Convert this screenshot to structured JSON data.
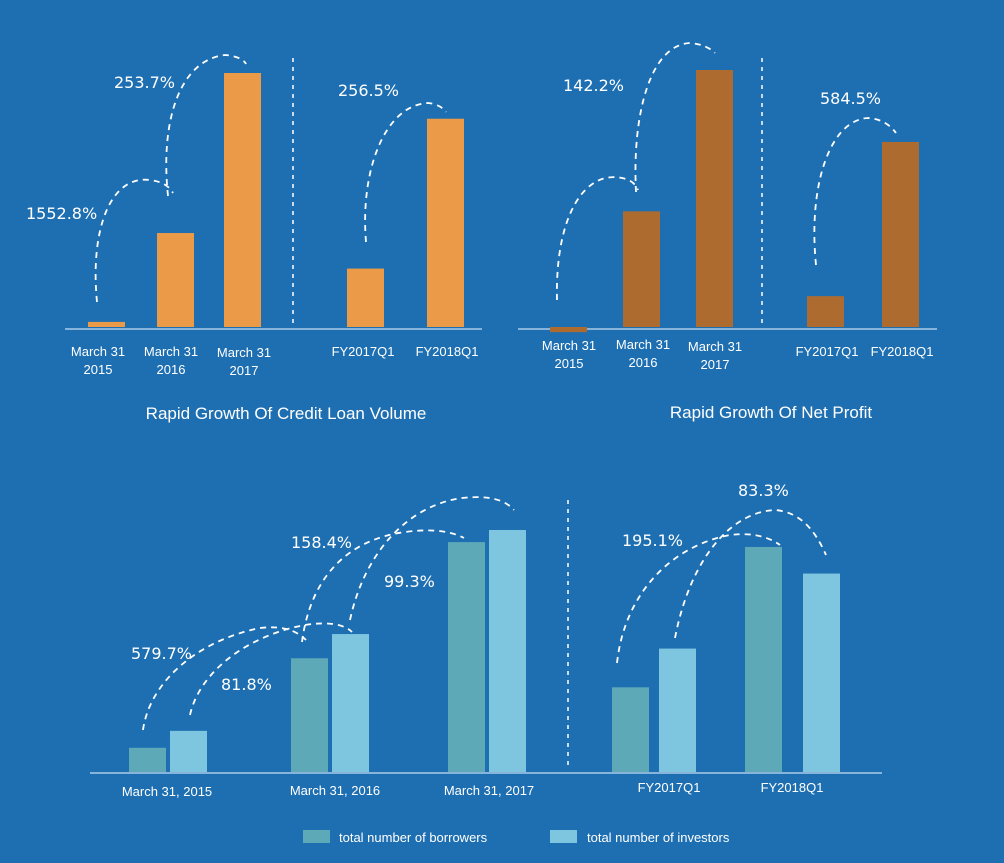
{
  "colors": {
    "background": "#1e6fb2",
    "credit_loan_bar": "#eb9b48",
    "net_profit_bar": "#ad6b30",
    "borrowers_bar": "#5ea9b7",
    "investors_bar": "#7ec6e0"
  },
  "chart_data": [
    {
      "type": "bar",
      "title": "Rapid Growth Of Credit Loan Volume",
      "groups": [
        {
          "categories": [
            "March 31\n2015",
            "March 31\n2016",
            "March 31\n2017"
          ],
          "values": [
            2,
            37,
            100
          ]
        },
        {
          "categories": [
            "FY2017Q1",
            "FY2018Q1"
          ],
          "values": [
            23,
            82
          ]
        }
      ],
      "annotations": [
        "1552.8%",
        "253.7%",
        "256.5%"
      ]
    },
    {
      "type": "bar",
      "title": "Rapid Growth Of Net Profit",
      "groups": [
        {
          "categories": [
            "March 31\n2015",
            "March 31\n2016",
            "March 31\n2017"
          ],
          "values": [
            -2,
            45,
            100
          ]
        },
        {
          "categories": [
            "FY2017Q1",
            "FY2018Q1"
          ],
          "values": [
            12,
            72
          ]
        }
      ],
      "annotations": [
        "142.2%",
        "584.5%"
      ]
    },
    {
      "type": "bar",
      "title": "",
      "series": [
        {
          "name": "total number of borrowers"
        },
        {
          "name": "total number of investors"
        }
      ],
      "groups": [
        {
          "categories": [
            "March 31, 2015",
            "March 31, 2016",
            "March 31, 2017"
          ],
          "borrowers": [
            10,
            47,
            95
          ],
          "investors": [
            17,
            57,
            100
          ]
        },
        {
          "categories": [
            "FY2017Q1",
            "FY2018Q1"
          ],
          "borrowers": [
            35,
            93
          ],
          "investors": [
            51,
            82
          ]
        }
      ],
      "annotations": [
        "579.7%",
        "81.8%",
        "158.4%",
        "99.3%",
        "195.1%",
        "83.3%"
      ]
    }
  ]
}
